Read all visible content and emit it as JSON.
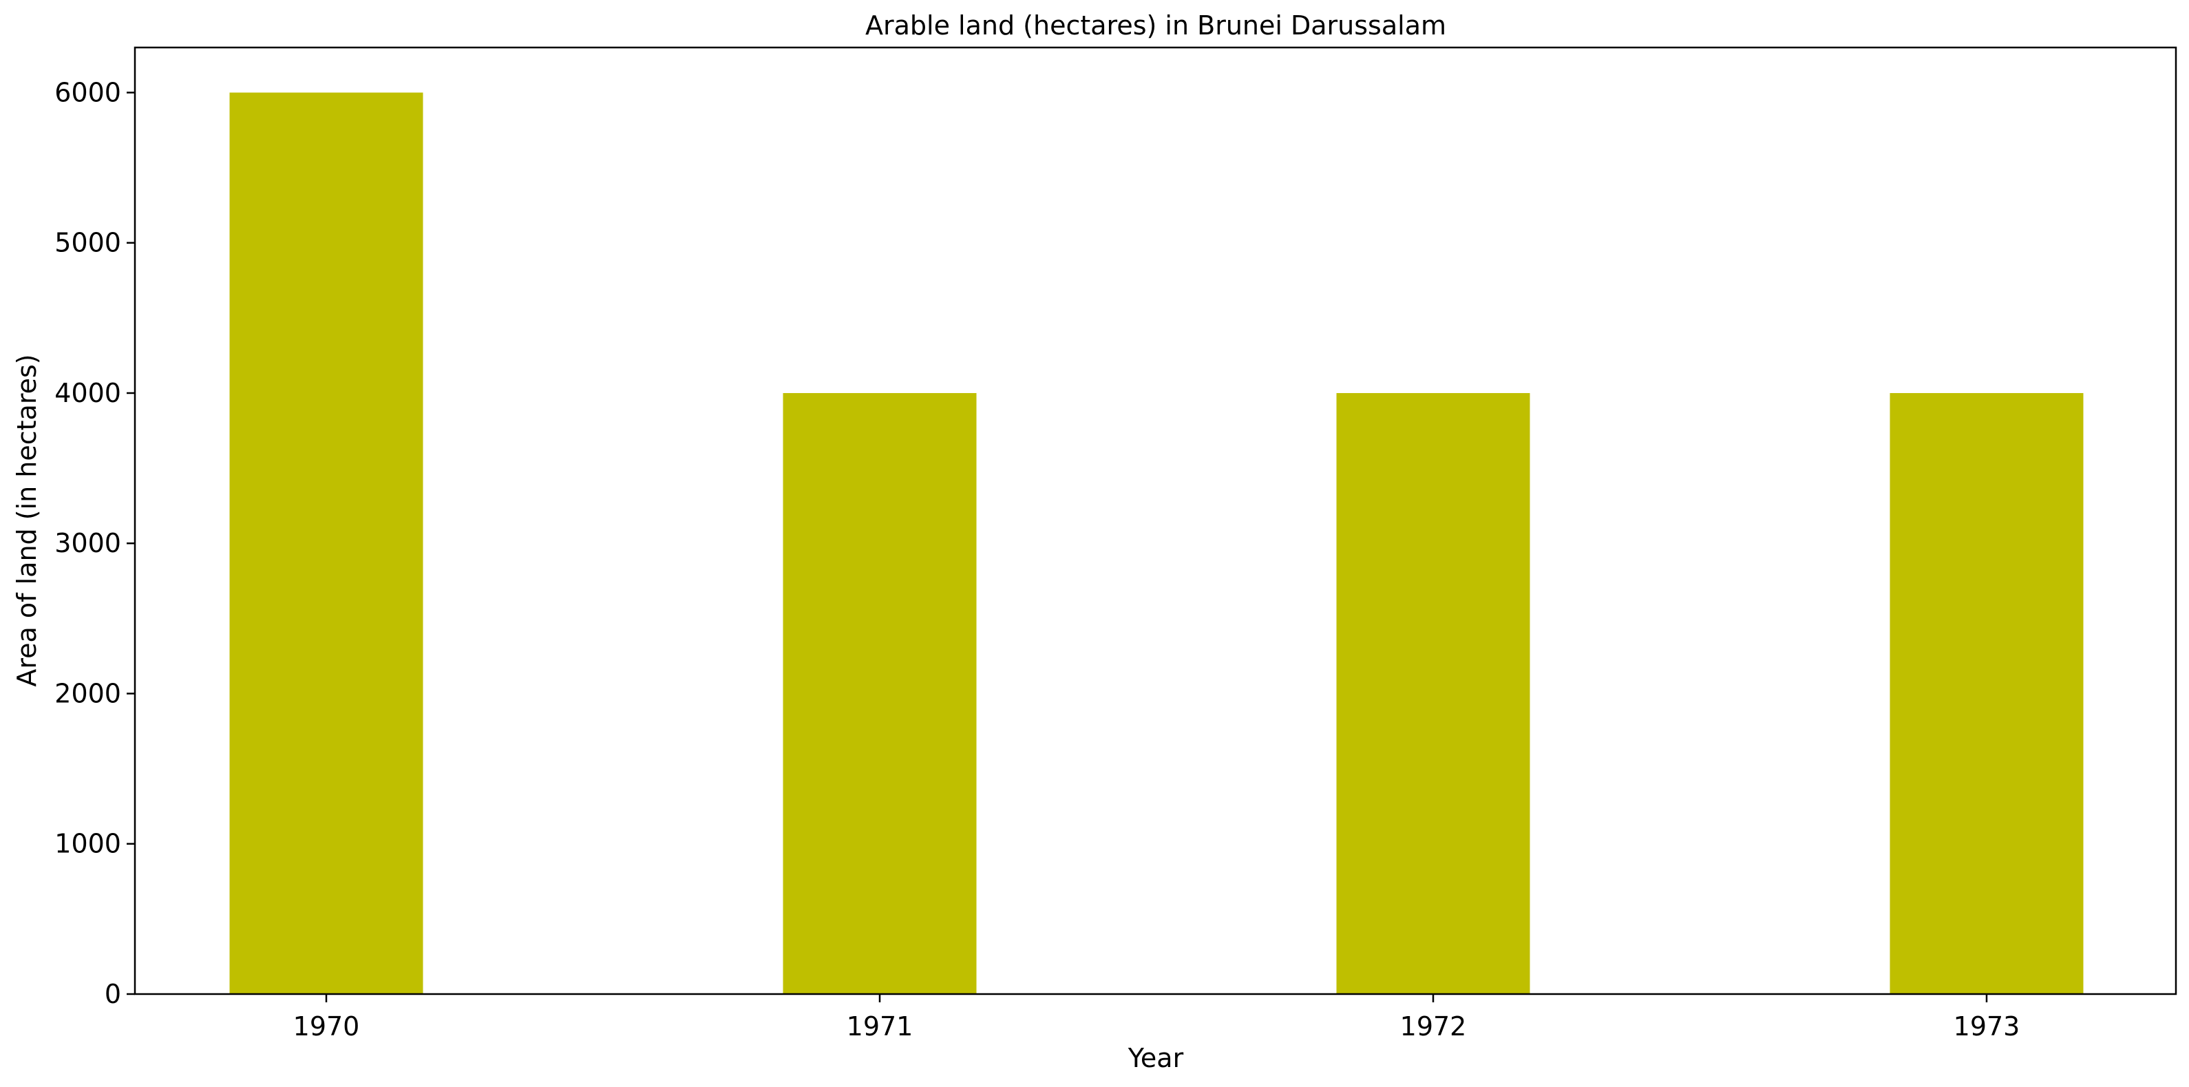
{
  "chart_data": {
    "type": "bar",
    "title": "Arable land (hectares) in Brunei Darussalam",
    "xlabel": "Year",
    "ylabel": "Area of land (in hectares)",
    "categories": [
      "1970",
      "1971",
      "1972",
      "1973"
    ],
    "values": [
      6000,
      4000,
      4000,
      4000
    ],
    "ylim": [
      0,
      6300
    ],
    "yticks": [
      0,
      1000,
      2000,
      3000,
      4000,
      5000,
      6000
    ],
    "bar_color": "#bfbf00",
    "grid": false
  }
}
